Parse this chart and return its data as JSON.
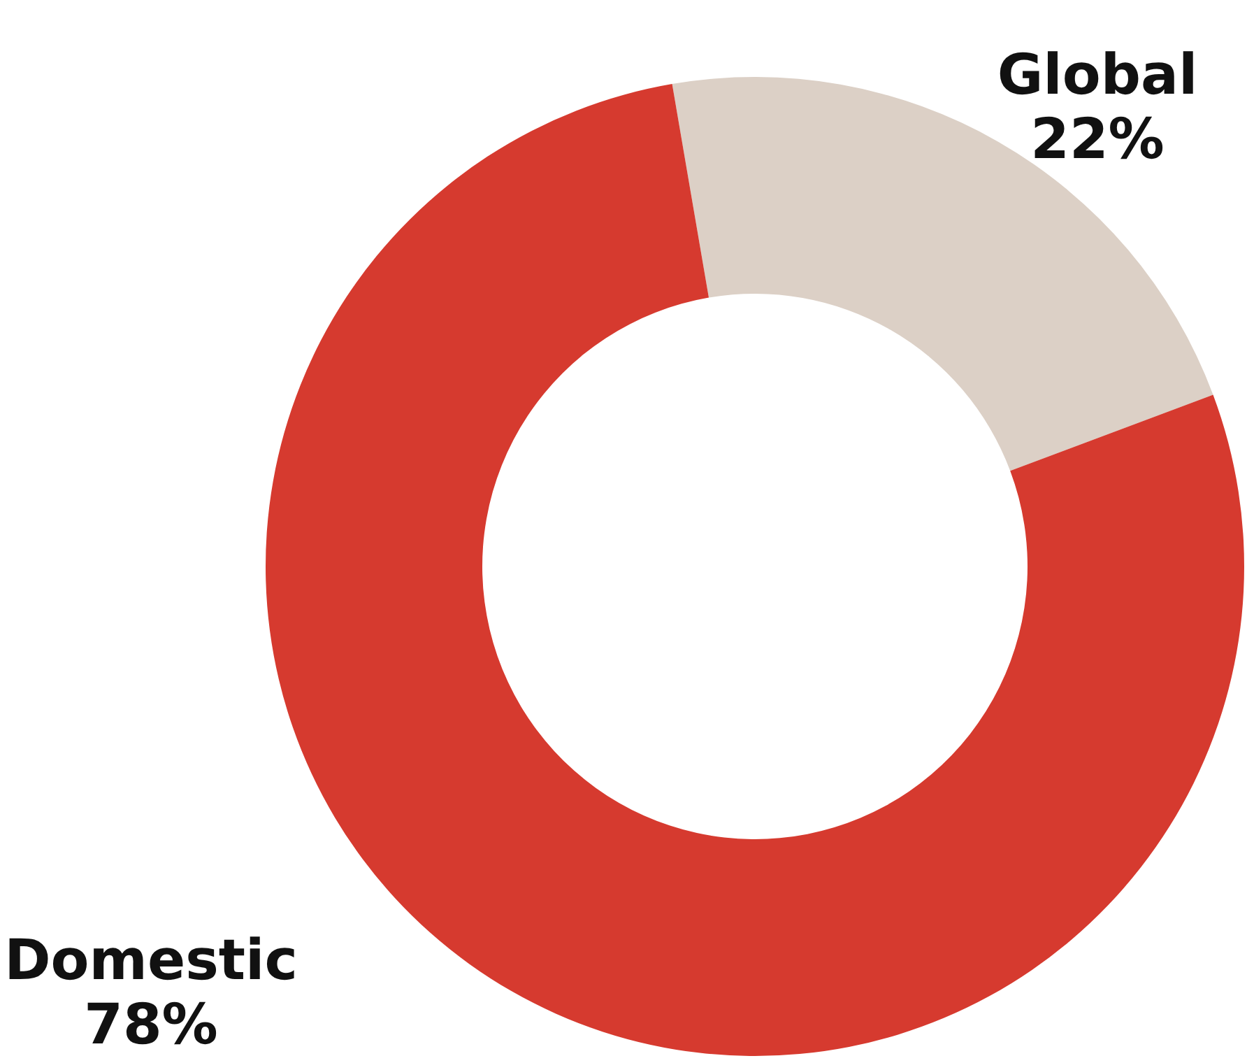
{
  "chart_data": {
    "type": "donut",
    "categories": [
      "Global",
      "Domestic"
    ],
    "values": [
      22,
      78
    ],
    "colors": [
      "#dcd0c6",
      "#d63a2f"
    ],
    "value_labels": [
      "22%",
      "78%"
    ]
  }
}
